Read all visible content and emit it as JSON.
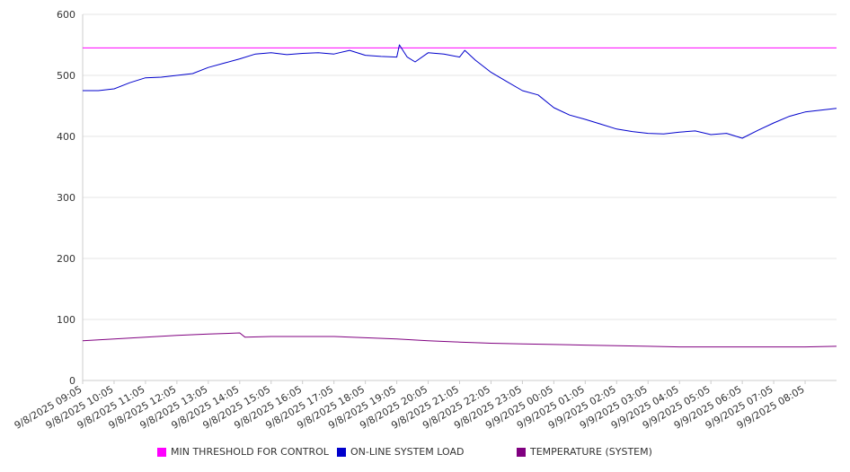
{
  "chart_data": {
    "type": "line",
    "xlabel": "",
    "ylabel": "",
    "ylim": [
      0,
      600
    ],
    "yticks": [
      0,
      100,
      200,
      300,
      400,
      500,
      600
    ],
    "grid": true,
    "legend_position": "bottom",
    "x_start": "9/8/2025 09:05",
    "x_end": "9/9/2025 09:05",
    "xtick_labels": [
      "9/8/2025 09:05",
      "9/8/2025 10:05",
      "9/8/2025 11:05",
      "9/8/2025 12:05",
      "9/8/2025 13:05",
      "9/8/2025 14:05",
      "9/8/2025 15:05",
      "9/8/2025 16:05",
      "9/8/2025 17:05",
      "9/8/2025 18:05",
      "9/8/2025 19:05",
      "9/8/2025 20:05",
      "9/8/2025 21:05",
      "9/8/2025 22:05",
      "9/8/2025 23:05",
      "9/9/2025 00:05",
      "9/9/2025 01:05",
      "9/9/2025 02:05",
      "9/9/2025 03:05",
      "9/9/2025 04:05",
      "9/9/2025 05:05",
      "9/9/2025 06:05",
      "9/9/2025 07:05",
      "9/9/2025 08:05"
    ],
    "series": [
      {
        "name": "MIN THRESHOLD FOR CONTROL",
        "color": "#ff00ff",
        "points": [
          [
            "9/8/2025 09:05",
            545
          ],
          [
            "9/9/2025 09:05",
            545
          ]
        ]
      },
      {
        "name": "ON-LINE SYSTEM LOAD",
        "color": "#0000cc",
        "points": [
          [
            "9/8/2025 09:05",
            475
          ],
          [
            "9/8/2025 09:35",
            475
          ],
          [
            "9/8/2025 10:05",
            478
          ],
          [
            "9/8/2025 10:35",
            488
          ],
          [
            "9/8/2025 11:05",
            496
          ],
          [
            "9/8/2025 11:35",
            497
          ],
          [
            "9/8/2025 12:05",
            500
          ],
          [
            "9/8/2025 12:35",
            503
          ],
          [
            "9/8/2025 13:05",
            513
          ],
          [
            "9/8/2025 13:35",
            520
          ],
          [
            "9/8/2025 14:05",
            527
          ],
          [
            "9/8/2025 14:35",
            535
          ],
          [
            "9/8/2025 15:05",
            537
          ],
          [
            "9/8/2025 15:35",
            534
          ],
          [
            "9/8/2025 16:05",
            536
          ],
          [
            "9/8/2025 16:35",
            537
          ],
          [
            "9/8/2025 17:05",
            535
          ],
          [
            "9/8/2025 17:35",
            541
          ],
          [
            "9/8/2025 18:05",
            533
          ],
          [
            "9/8/2025 18:35",
            531
          ],
          [
            "9/8/2025 19:05",
            530
          ],
          [
            "9/8/2025 19:10",
            550
          ],
          [
            "9/8/2025 19:25",
            530
          ],
          [
            "9/8/2025 19:40",
            522
          ],
          [
            "9/8/2025 20:05",
            537
          ],
          [
            "9/8/2025 20:35",
            535
          ],
          [
            "9/8/2025 21:05",
            530
          ],
          [
            "9/8/2025 21:15",
            541
          ],
          [
            "9/8/2025 21:35",
            525
          ],
          [
            "9/8/2025 22:05",
            505
          ],
          [
            "9/8/2025 22:35",
            490
          ],
          [
            "9/8/2025 23:05",
            475
          ],
          [
            "9/8/2025 23:35",
            468
          ],
          [
            "9/9/2025 00:05",
            447
          ],
          [
            "9/9/2025 00:35",
            435
          ],
          [
            "9/9/2025 01:05",
            428
          ],
          [
            "9/9/2025 01:35",
            420
          ],
          [
            "9/9/2025 02:05",
            412
          ],
          [
            "9/9/2025 02:35",
            408
          ],
          [
            "9/9/2025 03:05",
            405
          ],
          [
            "9/9/2025 03:35",
            404
          ],
          [
            "9/9/2025 04:05",
            407
          ],
          [
            "9/9/2025 04:35",
            409
          ],
          [
            "9/9/2025 05:05",
            403
          ],
          [
            "9/9/2025 05:35",
            405
          ],
          [
            "9/9/2025 06:05",
            397
          ],
          [
            "9/9/2025 06:35",
            410
          ],
          [
            "9/9/2025 07:05",
            422
          ],
          [
            "9/9/2025 07:35",
            433
          ],
          [
            "9/9/2025 08:05",
            440
          ],
          [
            "9/9/2025 08:35",
            443
          ],
          [
            "9/9/2025 09:05",
            446
          ]
        ]
      },
      {
        "name": "TEMPERATURE (SYSTEM)",
        "color": "#800080",
        "points": [
          [
            "9/8/2025 09:05",
            65
          ],
          [
            "9/8/2025 10:05",
            68
          ],
          [
            "9/8/2025 11:05",
            71
          ],
          [
            "9/8/2025 12:05",
            74
          ],
          [
            "9/8/2025 13:05",
            76
          ],
          [
            "9/8/2025 14:05",
            78
          ],
          [
            "9/8/2025 14:15",
            71
          ],
          [
            "9/8/2025 15:05",
            72
          ],
          [
            "9/8/2025 16:05",
            72
          ],
          [
            "9/8/2025 17:05",
            72
          ],
          [
            "9/8/2025 18:05",
            70
          ],
          [
            "9/8/2025 19:05",
            68
          ],
          [
            "9/8/2025 20:05",
            65
          ],
          [
            "9/8/2025 21:05",
            63
          ],
          [
            "9/8/2025 22:05",
            61
          ],
          [
            "9/8/2025 23:05",
            60
          ],
          [
            "9/9/2025 00:05",
            59
          ],
          [
            "9/9/2025 01:05",
            58
          ],
          [
            "9/9/2025 02:05",
            57
          ],
          [
            "9/9/2025 03:05",
            56
          ],
          [
            "9/9/2025 04:05",
            55
          ],
          [
            "9/9/2025 05:05",
            55
          ],
          [
            "9/9/2025 06:05",
            55
          ],
          [
            "9/9/2025 07:05",
            55
          ],
          [
            "9/9/2025 08:05",
            55
          ],
          [
            "9/9/2025 09:05",
            56
          ]
        ]
      }
    ]
  }
}
